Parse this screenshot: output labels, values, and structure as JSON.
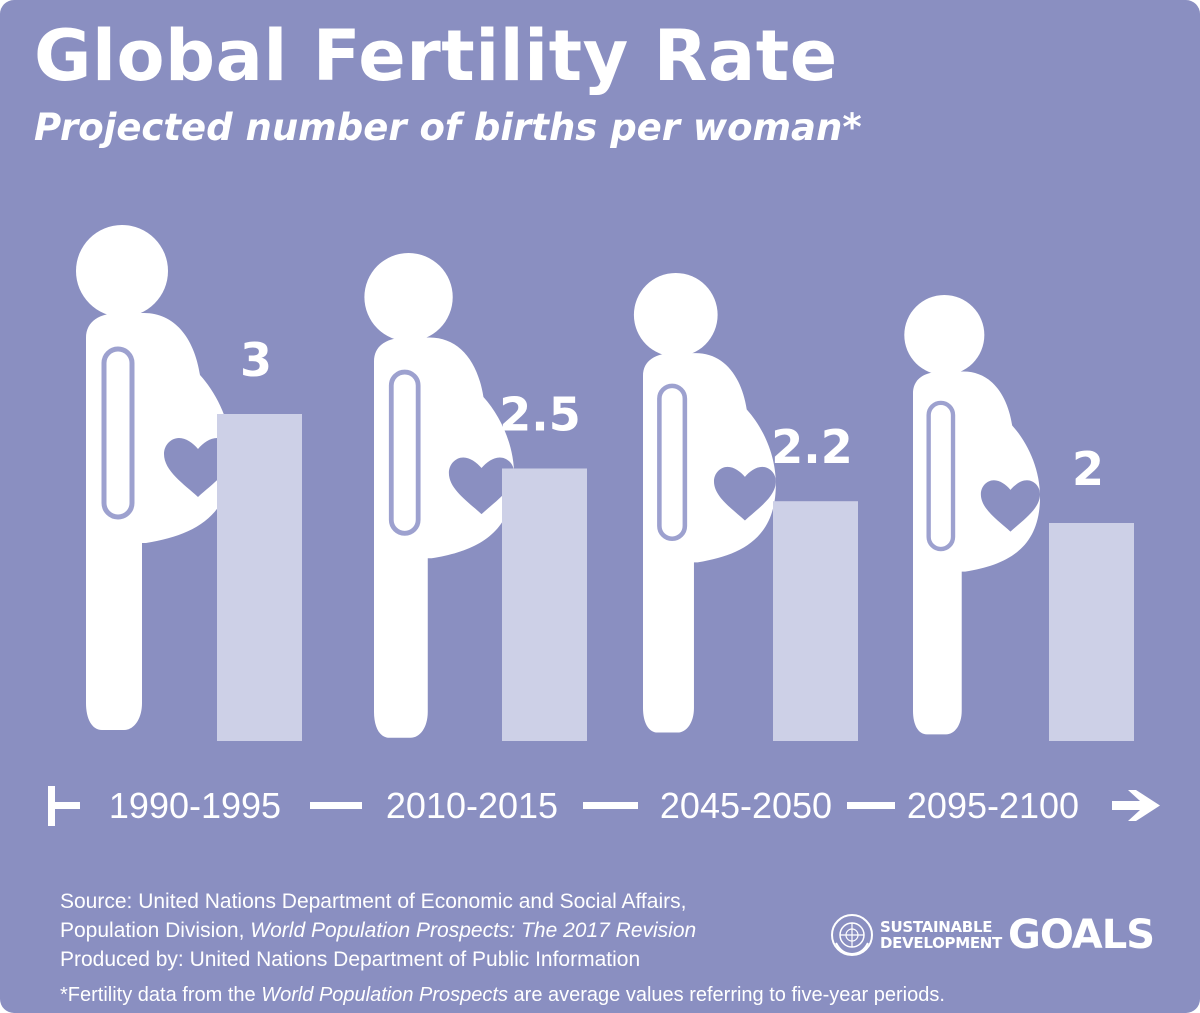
{
  "chart_data": {
    "type": "bar",
    "title": "Global Fertility Rate",
    "subtitle": "Projected number of births per woman*",
    "categories": [
      "1990-1995",
      "2010-2015",
      "2045-2050",
      "2095-2100"
    ],
    "values": [
      3,
      2.5,
      2.2,
      2
    ],
    "value_labels": [
      "3",
      "2.5",
      "2.2",
      "2"
    ],
    "ylim": [
      0,
      3.3
    ],
    "grid": false
  },
  "source": {
    "line1": "Source: United Nations Department of Economic and Social Affairs,",
    "line2_prefix": "Population Division, ",
    "line2_italic": "World Population Prospects: The 2017 Revision",
    "line3": "Produced by: United Nations Department of Public Information"
  },
  "footnote": {
    "prefix": "*Fertility data from the ",
    "italic": "World Population Prospects",
    "suffix": " are average values referring to five-year periods."
  },
  "logo": {
    "line1": "SUSTAINABLE",
    "line2": "DEVELOPMENT",
    "goals": "GOALS"
  },
  "colors": {
    "background": "#8a8fc1",
    "bar": "#cdd0e7",
    "figure": "#ffffff",
    "accent": "#9da1cf"
  }
}
